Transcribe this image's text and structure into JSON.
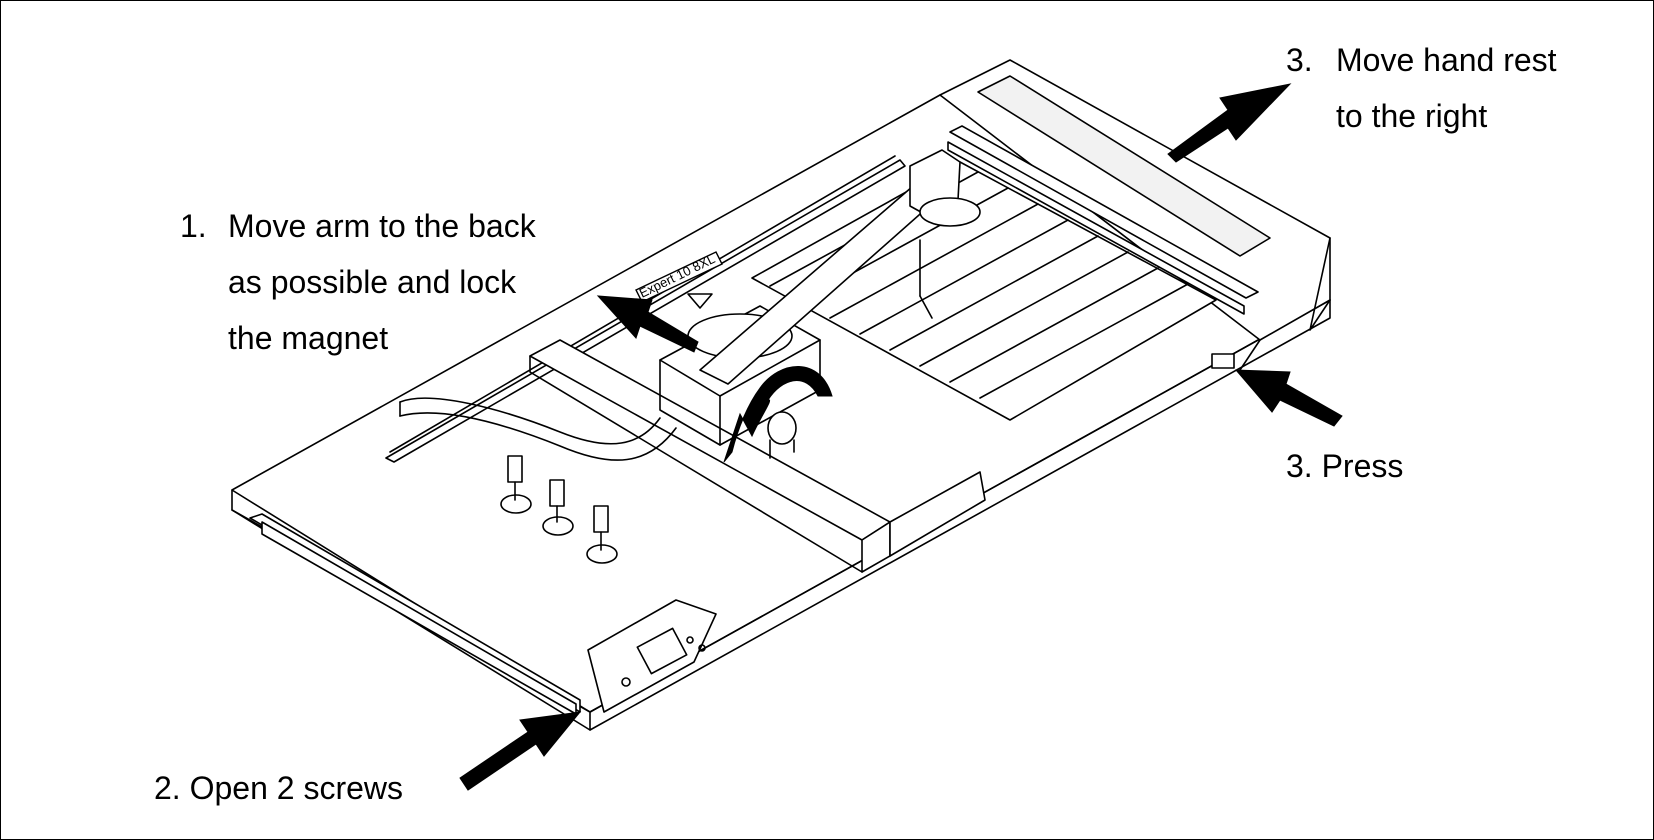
{
  "machine_label": "Expert 10 8XL",
  "steps": {
    "move_arm": {
      "number": "1.",
      "lines": [
        "Move arm to the back",
        "as possible and lock",
        "the magnet"
      ]
    },
    "open_screws": {
      "text": "2. Open 2 screws"
    },
    "move_hand_rest": {
      "number": "3.",
      "lines": [
        "Move hand rest",
        "to the right"
      ]
    },
    "press": {
      "text": "3. Press"
    }
  }
}
